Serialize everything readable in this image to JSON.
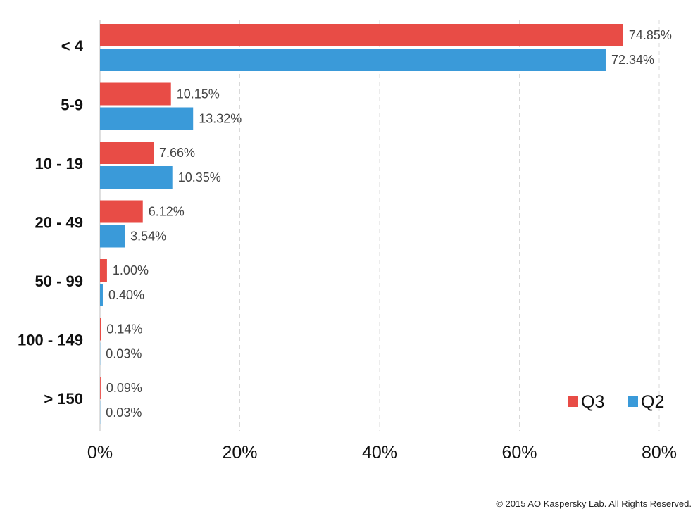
{
  "chart_data": {
    "type": "bar",
    "orientation": "horizontal",
    "categories": [
      "< 4",
      "5-9",
      "10 - 19",
      "20 - 49",
      "50 - 99",
      "100 - 149",
      "> 150"
    ],
    "series": [
      {
        "name": "Q3",
        "color": "#e84c46",
        "values": [
          74.85,
          10.15,
          7.66,
          6.12,
          1.0,
          0.14,
          0.09
        ],
        "labels": [
          "74.85%",
          "10.15%",
          "7.66%",
          "6.12%",
          "1.00%",
          "0.14%",
          "0.09%"
        ]
      },
      {
        "name": "Q2",
        "color": "#3a9ad9",
        "values": [
          72.34,
          13.32,
          10.35,
          3.54,
          0.4,
          0.03,
          0.03
        ],
        "labels": [
          "72.34%",
          "13.32%",
          "10.35%",
          "3.54%",
          "0.40%",
          "0.03%",
          "0.03%"
        ]
      }
    ],
    "xlim": [
      0,
      80
    ],
    "xticks": [
      "0%",
      "20%",
      "40%",
      "60%",
      "80%"
    ],
    "grid": true,
    "legend_position": "bottom-right"
  },
  "footer": {
    "copyright": "© 2015 AO Kaspersky Lab. All Rights Reserved."
  }
}
